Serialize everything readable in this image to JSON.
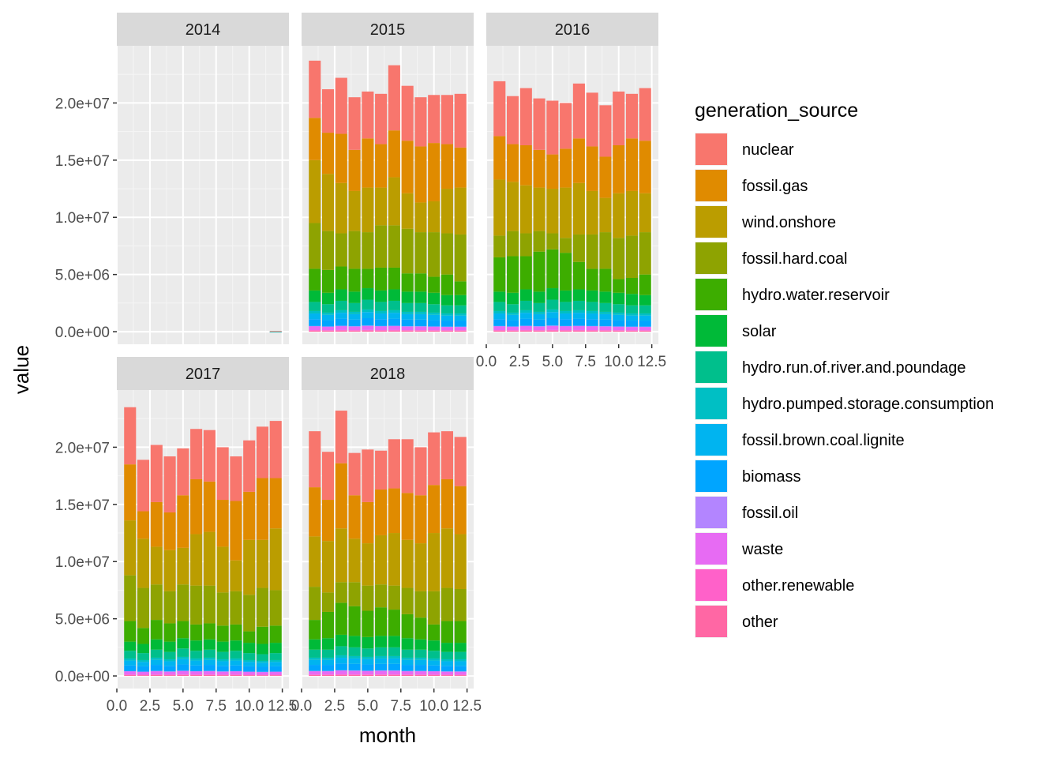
{
  "chart_data": {
    "type": "bar",
    "stacked": true,
    "facet_variable": "year",
    "panels": [
      "2014",
      "2015",
      "2016",
      "2017",
      "2018"
    ],
    "xlabel": "month",
    "ylabel": "value",
    "x_ticks": [
      "0.0",
      "2.5",
      "5.0",
      "7.5",
      "10.0",
      "12.5"
    ],
    "x_tick_values": [
      0,
      2.5,
      5,
      7.5,
      10,
      12.5
    ],
    "xlim": [
      0,
      13
    ],
    "y_ticks": [
      "0.0e+00",
      "5.0e+06",
      "1.0e+07",
      "1.5e+07",
      "2.0e+07"
    ],
    "y_tick_values": [
      0,
      5000000,
      10000000,
      15000000,
      20000000
    ],
    "ylim": [
      -1100000,
      25000000
    ],
    "grid": true,
    "legend": {
      "title": "generation_source",
      "position": "right",
      "entries": [
        {
          "name": "nuclear",
          "color": "#F8766D"
        },
        {
          "name": "fossil.gas",
          "color": "#E08B00"
        },
        {
          "name": "wind.onshore",
          "color": "#BB9D00"
        },
        {
          "name": "fossil.hard.coal",
          "color": "#8EA301"
        },
        {
          "name": "hydro.water.reservoir",
          "color": "#3DAD00"
        },
        {
          "name": "solar",
          "color": "#00BA38"
        },
        {
          "name": "hydro.run.of.river.and.poundage",
          "color": "#00BF8C"
        },
        {
          "name": "hydro.pumped.storage.consumption",
          "color": "#00BFC4"
        },
        {
          "name": "fossil.brown.coal.lignite",
          "color": "#00B4F0"
        },
        {
          "name": "biomass",
          "color": "#00A5FF"
        },
        {
          "name": "fossil.oil",
          "color": "#B385FF"
        },
        {
          "name": "waste",
          "color": "#E76BF3"
        },
        {
          "name": "other.renewable",
          "color": "#FF61C9"
        },
        {
          "name": "other",
          "color": "#FF67A4"
        }
      ]
    },
    "stack_order": [
      "other",
      "other.renewable",
      "waste",
      "fossil.oil",
      "biomass",
      "fossil.brown.coal.lignite",
      "hydro.pumped.storage.consumption",
      "hydro.run.of.river.and.poundage",
      "solar",
      "hydro.water.reservoir",
      "fossil.hard.coal",
      "wind.onshore",
      "fossil.gas",
      "nuclear"
    ],
    "small_series_profile": [
      60000,
      40000,
      230000,
      20000,
      420000,
      350000,
      150000,
      560000
    ],
    "panel_series": {
      "2014": {
        "months": [
          12
        ],
        "total": [
          55000
        ],
        "fossil.gas_top": [
          0
        ],
        "wind.onshore_top": [
          0
        ],
        "fossil.hard.coal_top": [
          0
        ],
        "hydro.water.reservoir_top": [
          0
        ],
        "solar_top": [
          0
        ],
        "small_total": [
          0
        ]
      },
      "2015": {
        "months": [
          1,
          2,
          3,
          4,
          5,
          6,
          7,
          8,
          9,
          10,
          11,
          12
        ],
        "total": [
          23700000,
          21200000,
          22200000,
          20500000,
          21000000,
          20800000,
          23300000,
          21500000,
          20500000,
          20700000,
          20700000,
          20800000
        ],
        "fossil.gas_top": [
          18700000,
          17400000,
          17300000,
          15900000,
          16900000,
          16400000,
          17600000,
          16700000,
          16200000,
          16500000,
          16400000,
          16100000
        ],
        "wind.onshore_top": [
          15000000,
          13800000,
          13000000,
          12300000,
          12600000,
          12600000,
          13500000,
          12100000,
          11300000,
          11400000,
          12500000,
          12600000
        ],
        "fossil.hard.coal_top": [
          9500000,
          8800000,
          8600000,
          8800000,
          8700000,
          9300000,
          9300000,
          9000000,
          8700000,
          8700000,
          8600000,
          8500000
        ],
        "hydro.water.reservoir_top": [
          5500000,
          5400000,
          5700000,
          5500000,
          5500000,
          5600000,
          5600000,
          5100000,
          5100000,
          4800000,
          5000000,
          4400000
        ],
        "solar_top": [
          3600000,
          3400000,
          3700000,
          3500000,
          3800000,
          3600000,
          3700000,
          3500000,
          3500000,
          3400000,
          3200000,
          3200000
        ],
        "small_total": [
          2600000,
          2400000,
          2700000,
          2500000,
          2800000,
          2600000,
          2700000,
          2500000,
          2500000,
          2400000,
          2300000,
          2300000
        ]
      },
      "2016": {
        "months": [
          1,
          2,
          3,
          4,
          5,
          6,
          7,
          8,
          9,
          10,
          11,
          12
        ],
        "total": [
          21900000,
          20600000,
          21300000,
          20400000,
          20200000,
          20000000,
          21700000,
          20900000,
          19800000,
          21000000,
          20800000,
          21300000
        ],
        "fossil.gas_top": [
          17100000,
          16400000,
          16300000,
          15900000,
          15500000,
          16000000,
          16900000,
          16200000,
          15300000,
          16300000,
          16900000,
          16700000
        ],
        "wind.onshore_top": [
          13300000,
          13100000,
          12800000,
          12600000,
          12500000,
          12600000,
          13000000,
          12300000,
          11700000,
          12100000,
          12300000,
          12100000
        ],
        "fossil.hard.coal_top": [
          8400000,
          8800000,
          8600000,
          8800000,
          8600000,
          8200000,
          8500000,
          8500000,
          8700000,
          8200000,
          8400000,
          8700000
        ],
        "hydro.water.reservoir_top": [
          6500000,
          6600000,
          6600000,
          7000000,
          7200000,
          6900000,
          6100000,
          5500000,
          5500000,
          4600000,
          4700000,
          5000000
        ],
        "solar_top": [
          3500000,
          3400000,
          3700000,
          3500000,
          3800000,
          3600000,
          3700000,
          3600000,
          3500000,
          3400000,
          3300000,
          3200000
        ],
        "small_total": [
          2600000,
          2400000,
          2700000,
          2500000,
          2800000,
          2600000,
          2700000,
          2600000,
          2500000,
          2400000,
          2300000,
          2300000
        ]
      },
      "2017": {
        "months": [
          1,
          2,
          3,
          4,
          5,
          6,
          7,
          8,
          9,
          10,
          11,
          12
        ],
        "total": [
          23500000,
          18900000,
          20200000,
          19200000,
          19900000,
          21600000,
          21500000,
          20000000,
          19200000,
          20600000,
          21800000,
          22300000
        ],
        "fossil.gas_top": [
          18500000,
          14400000,
          15200000,
          14300000,
          15800000,
          17200000,
          17000000,
          15400000,
          15300000,
          16100000,
          17300000,
          17300000
        ],
        "wind.onshore_top": [
          13600000,
          12000000,
          11300000,
          11000000,
          11200000,
          12400000,
          12600000,
          11300000,
          10100000,
          11900000,
          11900000,
          12900000
        ],
        "fossil.hard.coal_top": [
          8800000,
          7700000,
          8000000,
          7400000,
          8000000,
          7900000,
          7900000,
          7300000,
          7400000,
          7100000,
          7700000,
          7500000
        ],
        "hydro.water.reservoir_top": [
          4800000,
          4200000,
          4900000,
          4600000,
          4800000,
          4500000,
          4600000,
          4400000,
          4500000,
          3900000,
          4300000,
          4400000
        ],
        "solar_top": [
          3000000,
          2800000,
          3200000,
          3000000,
          3300000,
          3100000,
          3200000,
          3000000,
          3100000,
          2900000,
          2800000,
          2900000
        ],
        "small_total": [
          2200000,
          2000000,
          2300000,
          2100000,
          2400000,
          2200000,
          2300000,
          2100000,
          2200000,
          2000000,
          1900000,
          2000000
        ]
      },
      "2018": {
        "months": [
          1,
          2,
          3,
          4,
          5,
          6,
          7,
          8,
          9,
          10,
          11,
          12
        ],
        "total": [
          21400000,
          19600000,
          23200000,
          19500000,
          19800000,
          19700000,
          20700000,
          20700000,
          20000000,
          21300000,
          21400000,
          20900000
        ],
        "fossil.gas_top": [
          16500000,
          15400000,
          18600000,
          15800000,
          15200000,
          16300000,
          16400000,
          16000000,
          15800000,
          16700000,
          17200000,
          16600000
        ],
        "wind.onshore_top": [
          12200000,
          11800000,
          12900000,
          12000000,
          11600000,
          12300000,
          12500000,
          11900000,
          11600000,
          12500000,
          12900000,
          12400000
        ],
        "fossil.hard.coal_top": [
          7800000,
          7300000,
          8200000,
          8200000,
          7900000,
          8000000,
          7900000,
          7700000,
          7400000,
          7400000,
          7700000,
          7600000
        ],
        "hydro.water.reservoir_top": [
          4900000,
          5600000,
          6400000,
          6100000,
          5700000,
          6000000,
          5800000,
          5400000,
          5100000,
          4500000,
          4800000,
          4800000
        ],
        "solar_top": [
          3200000,
          3300000,
          3600000,
          3500000,
          3400000,
          3500000,
          3500000,
          3300000,
          3200000,
          3100000,
          2900000,
          2900000
        ],
        "small_total": [
          2300000,
          2300000,
          2600000,
          2500000,
          2400000,
          2500000,
          2500000,
          2300000,
          2300000,
          2200000,
          2100000,
          2100000
        ]
      }
    }
  }
}
